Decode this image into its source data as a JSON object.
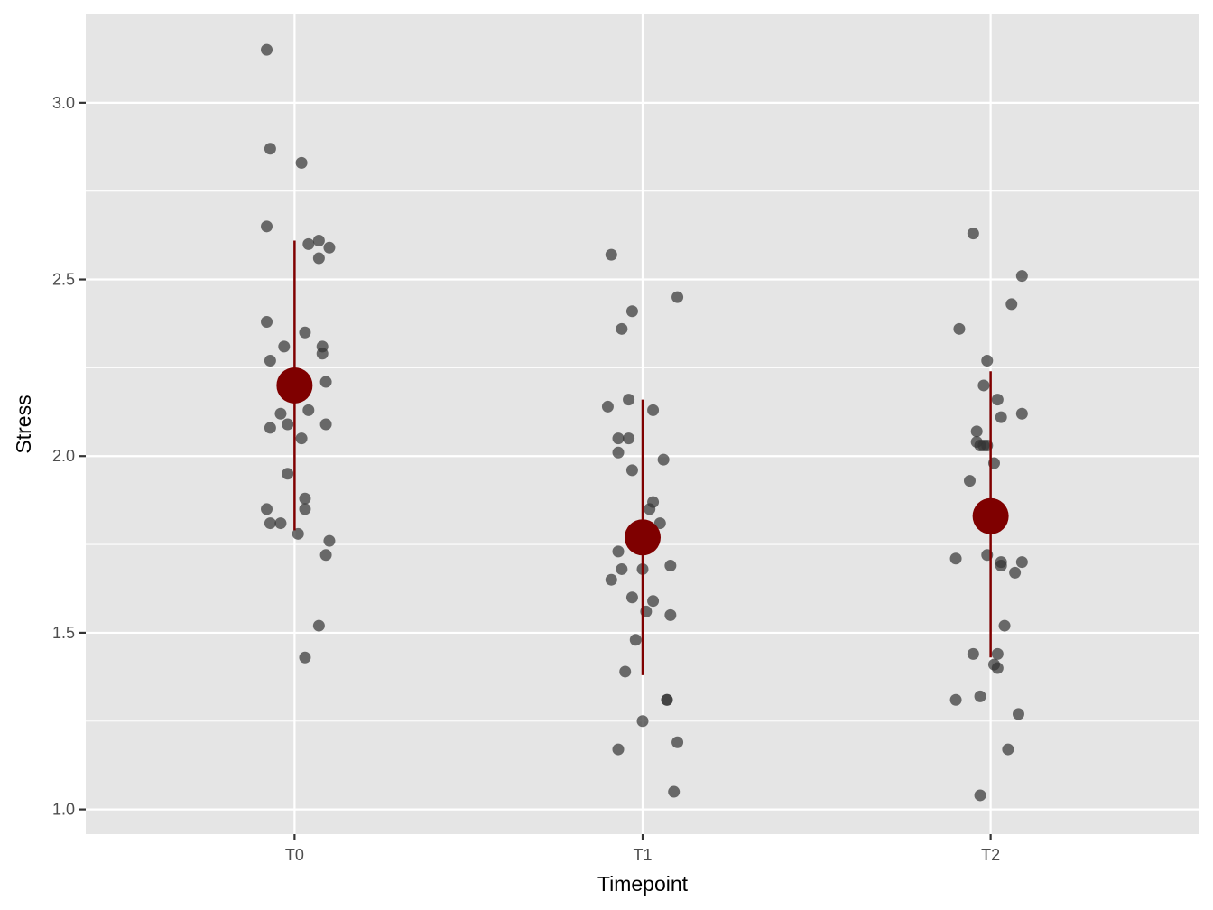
{
  "chart_data": {
    "type": "scatter",
    "title": "",
    "xlabel": "Timepoint",
    "ylabel": "Stress",
    "categories": [
      "T0",
      "T1",
      "T2"
    ],
    "ylim": [
      0.93,
      3.25
    ],
    "yticks": [
      "1.0",
      "1.5",
      "2.0",
      "2.5",
      "3.0"
    ],
    "grid": true,
    "legend": "none",
    "colors": {
      "panel": "#e5e5e5",
      "grid": "#ffffff",
      "points": "#333333",
      "summary": "#7f0000"
    },
    "series": [
      {
        "category": "T0",
        "points": [
          {
            "j": -0.08,
            "y": 3.15
          },
          {
            "j": -0.07,
            "y": 2.87
          },
          {
            "j": 0.02,
            "y": 2.83
          },
          {
            "j": -0.08,
            "y": 2.65
          },
          {
            "j": 0.07,
            "y": 2.61
          },
          {
            "j": 0.04,
            "y": 2.6
          },
          {
            "j": 0.1,
            "y": 2.59
          },
          {
            "j": 0.07,
            "y": 2.56
          },
          {
            "j": -0.08,
            "y": 2.38
          },
          {
            "j": 0.03,
            "y": 2.35
          },
          {
            "j": -0.03,
            "y": 2.31
          },
          {
            "j": 0.08,
            "y": 2.31
          },
          {
            "j": 0.08,
            "y": 2.29
          },
          {
            "j": -0.07,
            "y": 2.27
          },
          {
            "j": 0.09,
            "y": 2.21
          },
          {
            "j": -0.04,
            "y": 2.12
          },
          {
            "j": 0.04,
            "y": 2.13
          },
          {
            "j": -0.02,
            "y": 2.09
          },
          {
            "j": 0.09,
            "y": 2.09
          },
          {
            "j": -0.07,
            "y": 2.08
          },
          {
            "j": 0.02,
            "y": 2.05
          },
          {
            "j": -0.02,
            "y": 1.95
          },
          {
            "j": 0.03,
            "y": 1.88
          },
          {
            "j": 0.03,
            "y": 1.85
          },
          {
            "j": -0.08,
            "y": 1.85
          },
          {
            "j": -0.07,
            "y": 1.81
          },
          {
            "j": -0.04,
            "y": 1.81
          },
          {
            "j": 0.01,
            "y": 1.78
          },
          {
            "j": 0.1,
            "y": 1.76
          },
          {
            "j": 0.09,
            "y": 1.72
          },
          {
            "j": 0.07,
            "y": 1.52
          },
          {
            "j": 0.03,
            "y": 1.43
          }
        ],
        "mean": 2.2,
        "range": [
          1.79,
          2.61
        ]
      },
      {
        "category": "T1",
        "points": [
          {
            "j": -0.09,
            "y": 2.57
          },
          {
            "j": 0.1,
            "y": 2.45
          },
          {
            "j": -0.03,
            "y": 2.41
          },
          {
            "j": -0.06,
            "y": 2.36
          },
          {
            "j": -0.04,
            "y": 2.16
          },
          {
            "j": -0.1,
            "y": 2.14
          },
          {
            "j": 0.03,
            "y": 2.13
          },
          {
            "j": -0.07,
            "y": 2.05
          },
          {
            "j": -0.04,
            "y": 2.05
          },
          {
            "j": -0.07,
            "y": 2.01
          },
          {
            "j": 0.06,
            "y": 1.99
          },
          {
            "j": -0.03,
            "y": 1.96
          },
          {
            "j": 0.03,
            "y": 1.87
          },
          {
            "j": 0.02,
            "y": 1.85
          },
          {
            "j": 0.05,
            "y": 1.81
          },
          {
            "j": 0.0,
            "y": 1.79
          },
          {
            "j": -0.07,
            "y": 1.73
          },
          {
            "j": 0.08,
            "y": 1.69
          },
          {
            "j": -0.06,
            "y": 1.68
          },
          {
            "j": 0.0,
            "y": 1.68
          },
          {
            "j": -0.09,
            "y": 1.65
          },
          {
            "j": -0.03,
            "y": 1.6
          },
          {
            "j": 0.03,
            "y": 1.59
          },
          {
            "j": 0.01,
            "y": 1.56
          },
          {
            "j": 0.08,
            "y": 1.55
          },
          {
            "j": -0.02,
            "y": 1.48
          },
          {
            "j": -0.05,
            "y": 1.39
          },
          {
            "j": 0.07,
            "y": 1.31
          },
          {
            "j": 0.07,
            "y": 1.31
          },
          {
            "j": 0.0,
            "y": 1.25
          },
          {
            "j": 0.1,
            "y": 1.19
          },
          {
            "j": -0.07,
            "y": 1.17
          },
          {
            "j": 0.09,
            "y": 1.05
          }
        ],
        "mean": 1.77,
        "range": [
          1.38,
          2.16
        ]
      },
      {
        "category": "T2",
        "points": [
          {
            "j": -0.05,
            "y": 2.63
          },
          {
            "j": 0.09,
            "y": 2.51
          },
          {
            "j": 0.06,
            "y": 2.43
          },
          {
            "j": -0.09,
            "y": 2.36
          },
          {
            "j": -0.01,
            "y": 2.27
          },
          {
            "j": -0.02,
            "y": 2.2
          },
          {
            "j": 0.02,
            "y": 2.16
          },
          {
            "j": 0.09,
            "y": 2.12
          },
          {
            "j": 0.03,
            "y": 2.11
          },
          {
            "j": -0.04,
            "y": 2.07
          },
          {
            "j": -0.04,
            "y": 2.04
          },
          {
            "j": -0.03,
            "y": 2.03
          },
          {
            "j": -0.01,
            "y": 2.03
          },
          {
            "j": -0.02,
            "y": 2.03
          },
          {
            "j": 0.01,
            "y": 1.98
          },
          {
            "j": -0.06,
            "y": 1.93
          },
          {
            "j": 0.02,
            "y": 1.81
          },
          {
            "j": -0.01,
            "y": 1.72
          },
          {
            "j": -0.1,
            "y": 1.71
          },
          {
            "j": 0.03,
            "y": 1.7
          },
          {
            "j": 0.09,
            "y": 1.7
          },
          {
            "j": 0.03,
            "y": 1.69
          },
          {
            "j": 0.07,
            "y": 1.67
          },
          {
            "j": 0.04,
            "y": 1.52
          },
          {
            "j": -0.05,
            "y": 1.44
          },
          {
            "j": 0.02,
            "y": 1.44
          },
          {
            "j": 0.01,
            "y": 1.41
          },
          {
            "j": 0.02,
            "y": 1.4
          },
          {
            "j": -0.03,
            "y": 1.32
          },
          {
            "j": -0.1,
            "y": 1.31
          },
          {
            "j": 0.08,
            "y": 1.27
          },
          {
            "j": 0.05,
            "y": 1.17
          },
          {
            "j": -0.03,
            "y": 1.04
          }
        ],
        "mean": 1.83,
        "range": [
          1.43,
          2.24
        ]
      }
    ]
  }
}
